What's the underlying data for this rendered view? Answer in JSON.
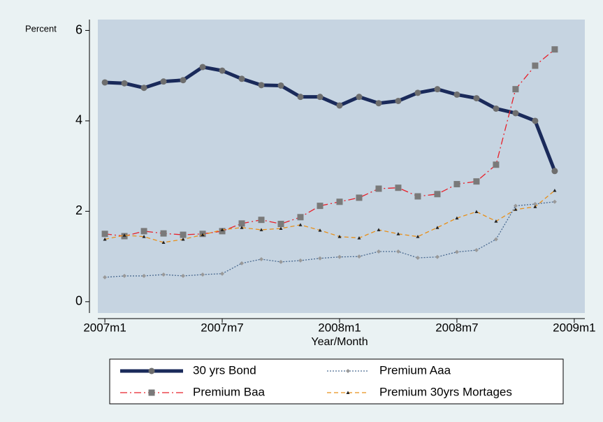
{
  "chart_data": {
    "type": "line",
    "ylabel": "Percent",
    "xlabel": "Year/Month",
    "x": [
      564,
      565,
      566,
      567,
      568,
      569,
      570,
      571,
      572,
      573,
      574,
      575,
      576,
      577,
      578,
      579,
      580,
      581,
      582,
      583,
      584,
      585,
      586,
      587
    ],
    "xlim": [
      563.64,
      588.54
    ],
    "xticks": [
      {
        "value": 564,
        "label": "2007m1"
      },
      {
        "value": 570,
        "label": "2007m7"
      },
      {
        "value": 576,
        "label": "2008m1"
      },
      {
        "value": 582,
        "label": "2008m7"
      },
      {
        "value": 588,
        "label": "2009m1"
      }
    ],
    "ylim": [
      -0.25,
      6.24
    ],
    "yticks": [
      0,
      2,
      4,
      6
    ],
    "series": [
      {
        "name": "30 yrs Bond",
        "color": "#1a2a5a",
        "line_style": "solid",
        "marker": "circle",
        "values": [
          4.85,
          4.83,
          4.73,
          4.87,
          4.9,
          5.19,
          5.11,
          4.93,
          4.79,
          4.78,
          4.53,
          4.53,
          4.34,
          4.53,
          4.39,
          4.44,
          4.62,
          4.7,
          4.58,
          4.5,
          4.27,
          4.17,
          4.0,
          2.89
        ]
      },
      {
        "name": "Premium Aaa",
        "color": "#4a6a90",
        "line_style": "dotted",
        "marker": "diamond",
        "values": [
          0.54,
          0.57,
          0.57,
          0.6,
          0.57,
          0.6,
          0.62,
          0.85,
          0.94,
          0.88,
          0.91,
          0.96,
          0.99,
          1.0,
          1.11,
          1.11,
          0.97,
          0.99,
          1.1,
          1.14,
          1.38,
          2.12,
          2.16,
          2.21
        ]
      },
      {
        "name": "Premium Baa",
        "color": "#e8202a",
        "line_style": "dashdot",
        "marker": "square",
        "values": [
          1.5,
          1.45,
          1.56,
          1.51,
          1.48,
          1.5,
          1.56,
          1.73,
          1.81,
          1.72,
          1.87,
          2.12,
          2.21,
          2.3,
          2.5,
          2.52,
          2.33,
          2.38,
          2.6,
          2.66,
          3.03,
          4.7,
          5.22,
          5.58
        ]
      },
      {
        "name": "Premium 30yrs Mortages",
        "color": "#e8901a",
        "line_style": "dashed",
        "marker": "triangle",
        "values": [
          1.38,
          1.47,
          1.44,
          1.31,
          1.38,
          1.48,
          1.59,
          1.64,
          1.59,
          1.62,
          1.7,
          1.58,
          1.44,
          1.41,
          1.59,
          1.5,
          1.44,
          1.64,
          1.85,
          1.99,
          1.78,
          2.04,
          2.1,
          2.46
        ]
      }
    ]
  }
}
